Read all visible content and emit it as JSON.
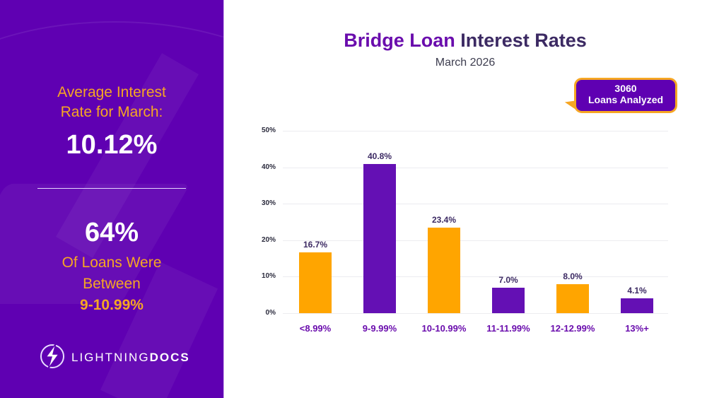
{
  "left_panel": {
    "avg_label_line1": "Average Interest",
    "avg_label_line2": "Rate for March:",
    "avg_value": "10.12%",
    "share_value": "64%",
    "share_label_line1": "Of Loans Were",
    "share_label_line2": "Between",
    "share_range": "9-10.99%",
    "logo_light": "LIGHTNING",
    "logo_bold": "DOCS",
    "logo_icon": "lightning-bolt-icon"
  },
  "header": {
    "title_accent": "Bridge Loan",
    "title_rest": " Interest Rates",
    "subtitle": "March 2026"
  },
  "callout": {
    "count": "3060",
    "label": "Loans Analyzed"
  },
  "colors": {
    "purple": "#5f00b2",
    "bar_purple": "#6410b4",
    "orange": "#f6a623",
    "title_purple": "#6a0dad",
    "title_dark": "#3c2a63"
  },
  "chart_data": {
    "type": "bar",
    "title": "Bridge Loan Interest Rates",
    "subtitle": "March 2026",
    "categories": [
      "<8.99%",
      "9-9.99%",
      "10-10.99%",
      "11-11.99%",
      "12-12.99%",
      "13%+"
    ],
    "values": [
      16.7,
      40.8,
      23.4,
      7.0,
      8.0,
      4.1
    ],
    "value_labels": [
      "16.7%",
      "40.8%",
      "23.4%",
      "7.0%",
      "8.0%",
      "4.1%"
    ],
    "bar_colors": [
      "#ffa500",
      "#6410b4",
      "#ffa500",
      "#6410b4",
      "#ffa500",
      "#6410b4"
    ],
    "xlabel": "",
    "ylabel": "",
    "ylim": [
      0,
      50
    ],
    "yticks": [
      "0%",
      "10%",
      "20%",
      "30%",
      "40%",
      "50%"
    ],
    "grid": true,
    "legend": "none",
    "annotation": "3060 Loans Analyzed"
  }
}
